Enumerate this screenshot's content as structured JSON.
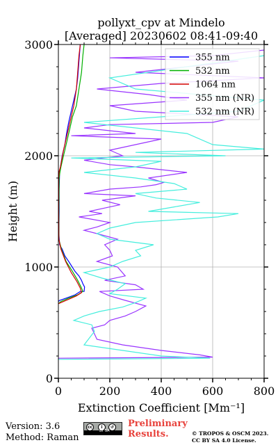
{
  "chart_data": {
    "type": "line",
    "title": "pollyxt_cpv at Mindelo",
    "subtitle": "[Averaged] 20230602 08:41-09:40",
    "xlabel": "Extinction Coefficient [Mm⁻¹]",
    "ylabel": "Height (m)",
    "xlim": [
      0,
      800
    ],
    "ylim": [
      0,
      3000
    ],
    "xticks": [
      "0",
      "200",
      "400",
      "600",
      "800"
    ],
    "yticks": [
      "0",
      "1000",
      "2000",
      "3000"
    ],
    "grid": true,
    "legend_position": "top-right",
    "series": [
      {
        "name": "355 nm",
        "color": "#0000ff",
        "x": [
          0,
          5,
          30,
          65,
          85,
          100,
          102,
          95,
          90,
          80,
          65,
          40,
          25,
          15,
          5,
          2,
          3,
          3,
          5,
          8,
          15,
          25,
          32,
          40,
          50,
          60,
          70,
          75,
          80,
          85
        ],
        "y": [
          690,
          700,
          720,
          750,
          780,
          780,
          820,
          850,
          880,
          920,
          960,
          1050,
          1100,
          1160,
          1200,
          1300,
          1500,
          1700,
          1850,
          1900,
          2000,
          2100,
          2200,
          2300,
          2400,
          2500,
          2600,
          2700,
          2850,
          3000
        ]
      },
      {
        "name": "532 nm",
        "color": "#00b000",
        "x": [
          0,
          10,
          40,
          75,
          95,
          88,
          75,
          55,
          30,
          12,
          2,
          2,
          3,
          6,
          10,
          15,
          25,
          35,
          45,
          55,
          70,
          80,
          90,
          95,
          100
        ],
        "y": [
          670,
          690,
          720,
          750,
          780,
          820,
          880,
          960,
          1050,
          1160,
          1250,
          1500,
          1800,
          1850,
          1900,
          1950,
          2050,
          2150,
          2250,
          2350,
          2450,
          2600,
          2750,
          2900,
          3000
        ]
      },
      {
        "name": "1064 nm",
        "color": "#d40000",
        "x": [
          0,
          10,
          40,
          70,
          90,
          85,
          72,
          50,
          28,
          10,
          2,
          1,
          1,
          3,
          8,
          12,
          20,
          30,
          40,
          50,
          60,
          70,
          75,
          80,
          85
        ],
        "y": [
          670,
          680,
          710,
          740,
          770,
          810,
          870,
          950,
          1050,
          1160,
          1250,
          1500,
          1800,
          1860,
          1900,
          1950,
          2050,
          2150,
          2250,
          2350,
          2450,
          2600,
          2750,
          2900,
          3000
        ]
      },
      {
        "name": "355 nm (NR)",
        "color": "#9933ff",
        "x": [
          0,
          600,
          550,
          400,
          250,
          150,
          140,
          130,
          180,
          200,
          260,
          300,
          340,
          260,
          200,
          160,
          330,
          300,
          180,
          260,
          230,
          150,
          210,
          200,
          180,
          230,
          150,
          100,
          150,
          200,
          80,
          170,
          120,
          180,
          240,
          170,
          300,
          100,
          200,
          320,
          380,
          410,
          350,
          500,
          300,
          200,
          100,
          250,
          200,
          300,
          400,
          50,
          300,
          100,
          200,
          600,
          700,
          300,
          200,
          500,
          350,
          150,
          400,
          800,
          300,
          500,
          700,
          200,
          600,
          800
        ],
        "y": [
          180,
          190,
          210,
          250,
          300,
          350,
          400,
          450,
          480,
          520,
          560,
          600,
          650,
          700,
          740,
          780,
          800,
          840,
          880,
          920,
          1000,
          1050,
          1100,
          1150,
          1200,
          1250,
          1300,
          1330,
          1360,
          1400,
          1450,
          1480,
          1500,
          1530,
          1560,
          1600,
          1640,
          1660,
          1700,
          1720,
          1740,
          1760,
          1800,
          1850,
          1900,
          1920,
          1960,
          2000,
          2050,
          2100,
          2150,
          2180,
          2200,
          2250,
          2280,
          2300,
          2350,
          2400,
          2450,
          2500,
          2550,
          2600,
          2650,
          2700,
          2750,
          2800,
          2850,
          2880,
          2900,
          2950
        ]
      },
      {
        "name": "532 nm (NR)",
        "color": "#44eedd",
        "x": [
          0,
          590,
          400,
          250,
          100,
          120,
          140,
          130,
          60,
          100,
          160,
          250,
          300,
          340,
          200,
          230,
          260,
          170,
          100,
          200,
          250,
          320,
          300,
          370,
          200,
          150,
          200,
          300,
          620,
          700,
          350,
          450,
          550,
          380,
          300,
          500,
          450,
          300,
          100,
          300,
          400,
          50,
          650,
          300,
          800,
          600,
          500,
          100,
          700,
          800,
          300,
          200,
          500,
          800
        ],
        "y": [
          170,
          180,
          200,
          250,
          300,
          360,
          420,
          480,
          520,
          560,
          600,
          640,
          680,
          720,
          760,
          800,
          850,
          900,
          950,
          1000,
          1050,
          1100,
          1150,
          1200,
          1250,
          1300,
          1350,
          1400,
          1450,
          1480,
          1500,
          1540,
          1580,
          1620,
          1660,
          1700,
          1750,
          1800,
          1850,
          1900,
          1950,
          1980,
          2000,
          2030,
          2060,
          2100,
          2200,
          2300,
          2400,
          2500,
          2600,
          2700,
          2800,
          2900
        ]
      }
    ]
  },
  "footer": {
    "version": "Version: 3.6",
    "method": "Method: Raman",
    "preliminary_line1": "Preliminary",
    "preliminary_line2": "Results.",
    "copyright_line1": "© TROPOS & OSCM 2023.",
    "copyright_line2": "CC BY SA 4.0 License."
  },
  "license_badge": {
    "icon": "cc-by-sa-icon",
    "text": "BY SA"
  }
}
